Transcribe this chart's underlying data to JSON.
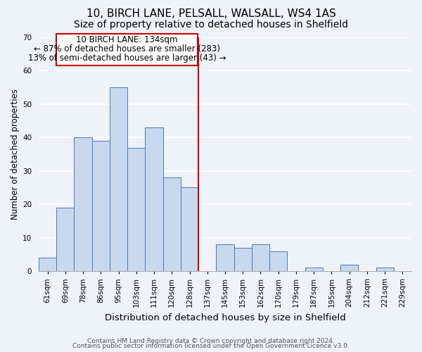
{
  "title": "10, BIRCH LANE, PELSALL, WALSALL, WS4 1AS",
  "subtitle": "Size of property relative to detached houses in Shelfield",
  "xlabel": "Distribution of detached houses by size in Shelfield",
  "ylabel": "Number of detached properties",
  "footer1": "Contains HM Land Registry data © Crown copyright and database right 2024.",
  "footer2": "Contains public sector information licensed under the Open Government Licence v3.0.",
  "annotation_line1": "10 BIRCH LANE: 134sqm",
  "annotation_line2": "← 87% of detached houses are smaller (283)",
  "annotation_line3": "13% of semi-detached houses are larger (43) →",
  "bar_color": "#c8d9ef",
  "bar_edge_color": "#4a7ab5",
  "ref_line_color": "#cc0000",
  "categories": [
    "61sqm",
    "69sqm",
    "78sqm",
    "86sqm",
    "95sqm",
    "103sqm",
    "111sqm",
    "120sqm",
    "128sqm",
    "137sqm",
    "145sqm",
    "153sqm",
    "162sqm",
    "170sqm",
    "179sqm",
    "187sqm",
    "195sqm",
    "204sqm",
    "212sqm",
    "221sqm",
    "229sqm"
  ],
  "values": [
    4,
    19,
    40,
    39,
    55,
    37,
    43,
    28,
    25,
    0,
    8,
    7,
    8,
    6,
    0,
    1,
    0,
    2,
    0,
    1,
    0
  ],
  "ylim": [
    0,
    70
  ],
  "yticks": [
    0,
    10,
    20,
    30,
    40,
    50,
    60,
    70
  ],
  "background_color": "#eef2f9",
  "grid_color": "#ffffff",
  "title_fontsize": 11,
  "subtitle_fontsize": 10,
  "xlabel_fontsize": 9.5,
  "ylabel_fontsize": 8.5,
  "tick_fontsize": 7.5,
  "annotation_fontsize": 8.5,
  "footer_fontsize": 6.5
}
